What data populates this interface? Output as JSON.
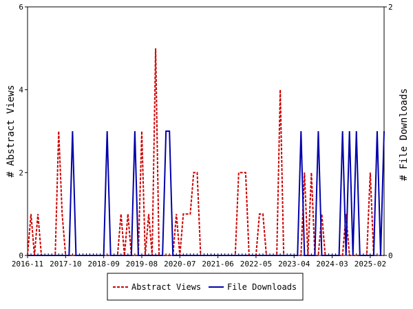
{
  "chart_data": {
    "type": "line",
    "y_left": {
      "label": "# Abstract Views",
      "range": [
        0,
        6
      ],
      "ticks": [
        "0",
        "2",
        "4",
        "6"
      ]
    },
    "y_right": {
      "label": "# File Downloads",
      "range": [
        0,
        2
      ],
      "ticks": [
        "0",
        "2"
      ]
    },
    "x_tick_labels": [
      "2016-11",
      "2017-10",
      "2018-09",
      "2019-08",
      "2020-07",
      "2021-06",
      "2022-05",
      "2023-04",
      "2024-03",
      "2025-02"
    ],
    "months_start": "2016-11",
    "month_count": 104,
    "series": [
      {
        "name": "Abstract Views",
        "axis": "left",
        "color": "#cc0000",
        "style": "dashed",
        "values": [
          0,
          1,
          0,
          1,
          0,
          0,
          0,
          0,
          0,
          3,
          1,
          0,
          0,
          0,
          0,
          0,
          0,
          0,
          0,
          0,
          0,
          0,
          0,
          0,
          0,
          0,
          0,
          1,
          0,
          1,
          0,
          0,
          0,
          3,
          0,
          1,
          0,
          5,
          0,
          0,
          0,
          0,
          0,
          1,
          0,
          1,
          1,
          1,
          2,
          2,
          0,
          0,
          0,
          0,
          0,
          0,
          0,
          0,
          0,
          0,
          0,
          2,
          2,
          2,
          0,
          0,
          0,
          1,
          1,
          0,
          0,
          0,
          0,
          4,
          0,
          0,
          0,
          0,
          0,
          0,
          2,
          0,
          2,
          0,
          0,
          1,
          0,
          0,
          0,
          0,
          0,
          0,
          1,
          0,
          0,
          0,
          0,
          0,
          0,
          2,
          0,
          0,
          0,
          0
        ]
      },
      {
        "name": "File Downloads",
        "axis": "right",
        "color": "#0000aa",
        "style": "solid",
        "values": [
          0,
          0,
          0,
          0,
          0,
          0,
          0,
          0,
          0,
          0,
          0,
          0,
          0,
          1,
          0,
          0,
          0,
          0,
          0,
          0,
          0,
          0,
          0,
          1,
          0,
          0,
          0,
          0,
          0,
          0,
          0,
          1,
          0,
          0,
          0,
          0,
          0,
          0,
          0,
          0,
          1,
          1,
          0,
          0,
          0,
          0,
          0,
          0,
          0,
          0,
          0,
          0,
          0,
          0,
          0,
          0,
          0,
          0,
          0,
          0,
          0,
          0,
          0,
          0,
          0,
          0,
          0,
          0,
          0,
          0,
          0,
          0,
          0,
          0,
          0,
          0,
          0,
          0,
          0,
          1,
          0,
          0,
          0,
          0,
          1,
          0,
          0,
          0,
          0,
          0,
          0,
          1,
          0,
          1,
          0,
          1,
          0,
          0,
          0,
          0,
          0,
          1,
          0,
          1
        ]
      }
    ],
    "legend": {
      "placement": "bottom-center",
      "entries": [
        "Abstract Views",
        "File Downloads"
      ]
    },
    "grid": false
  }
}
